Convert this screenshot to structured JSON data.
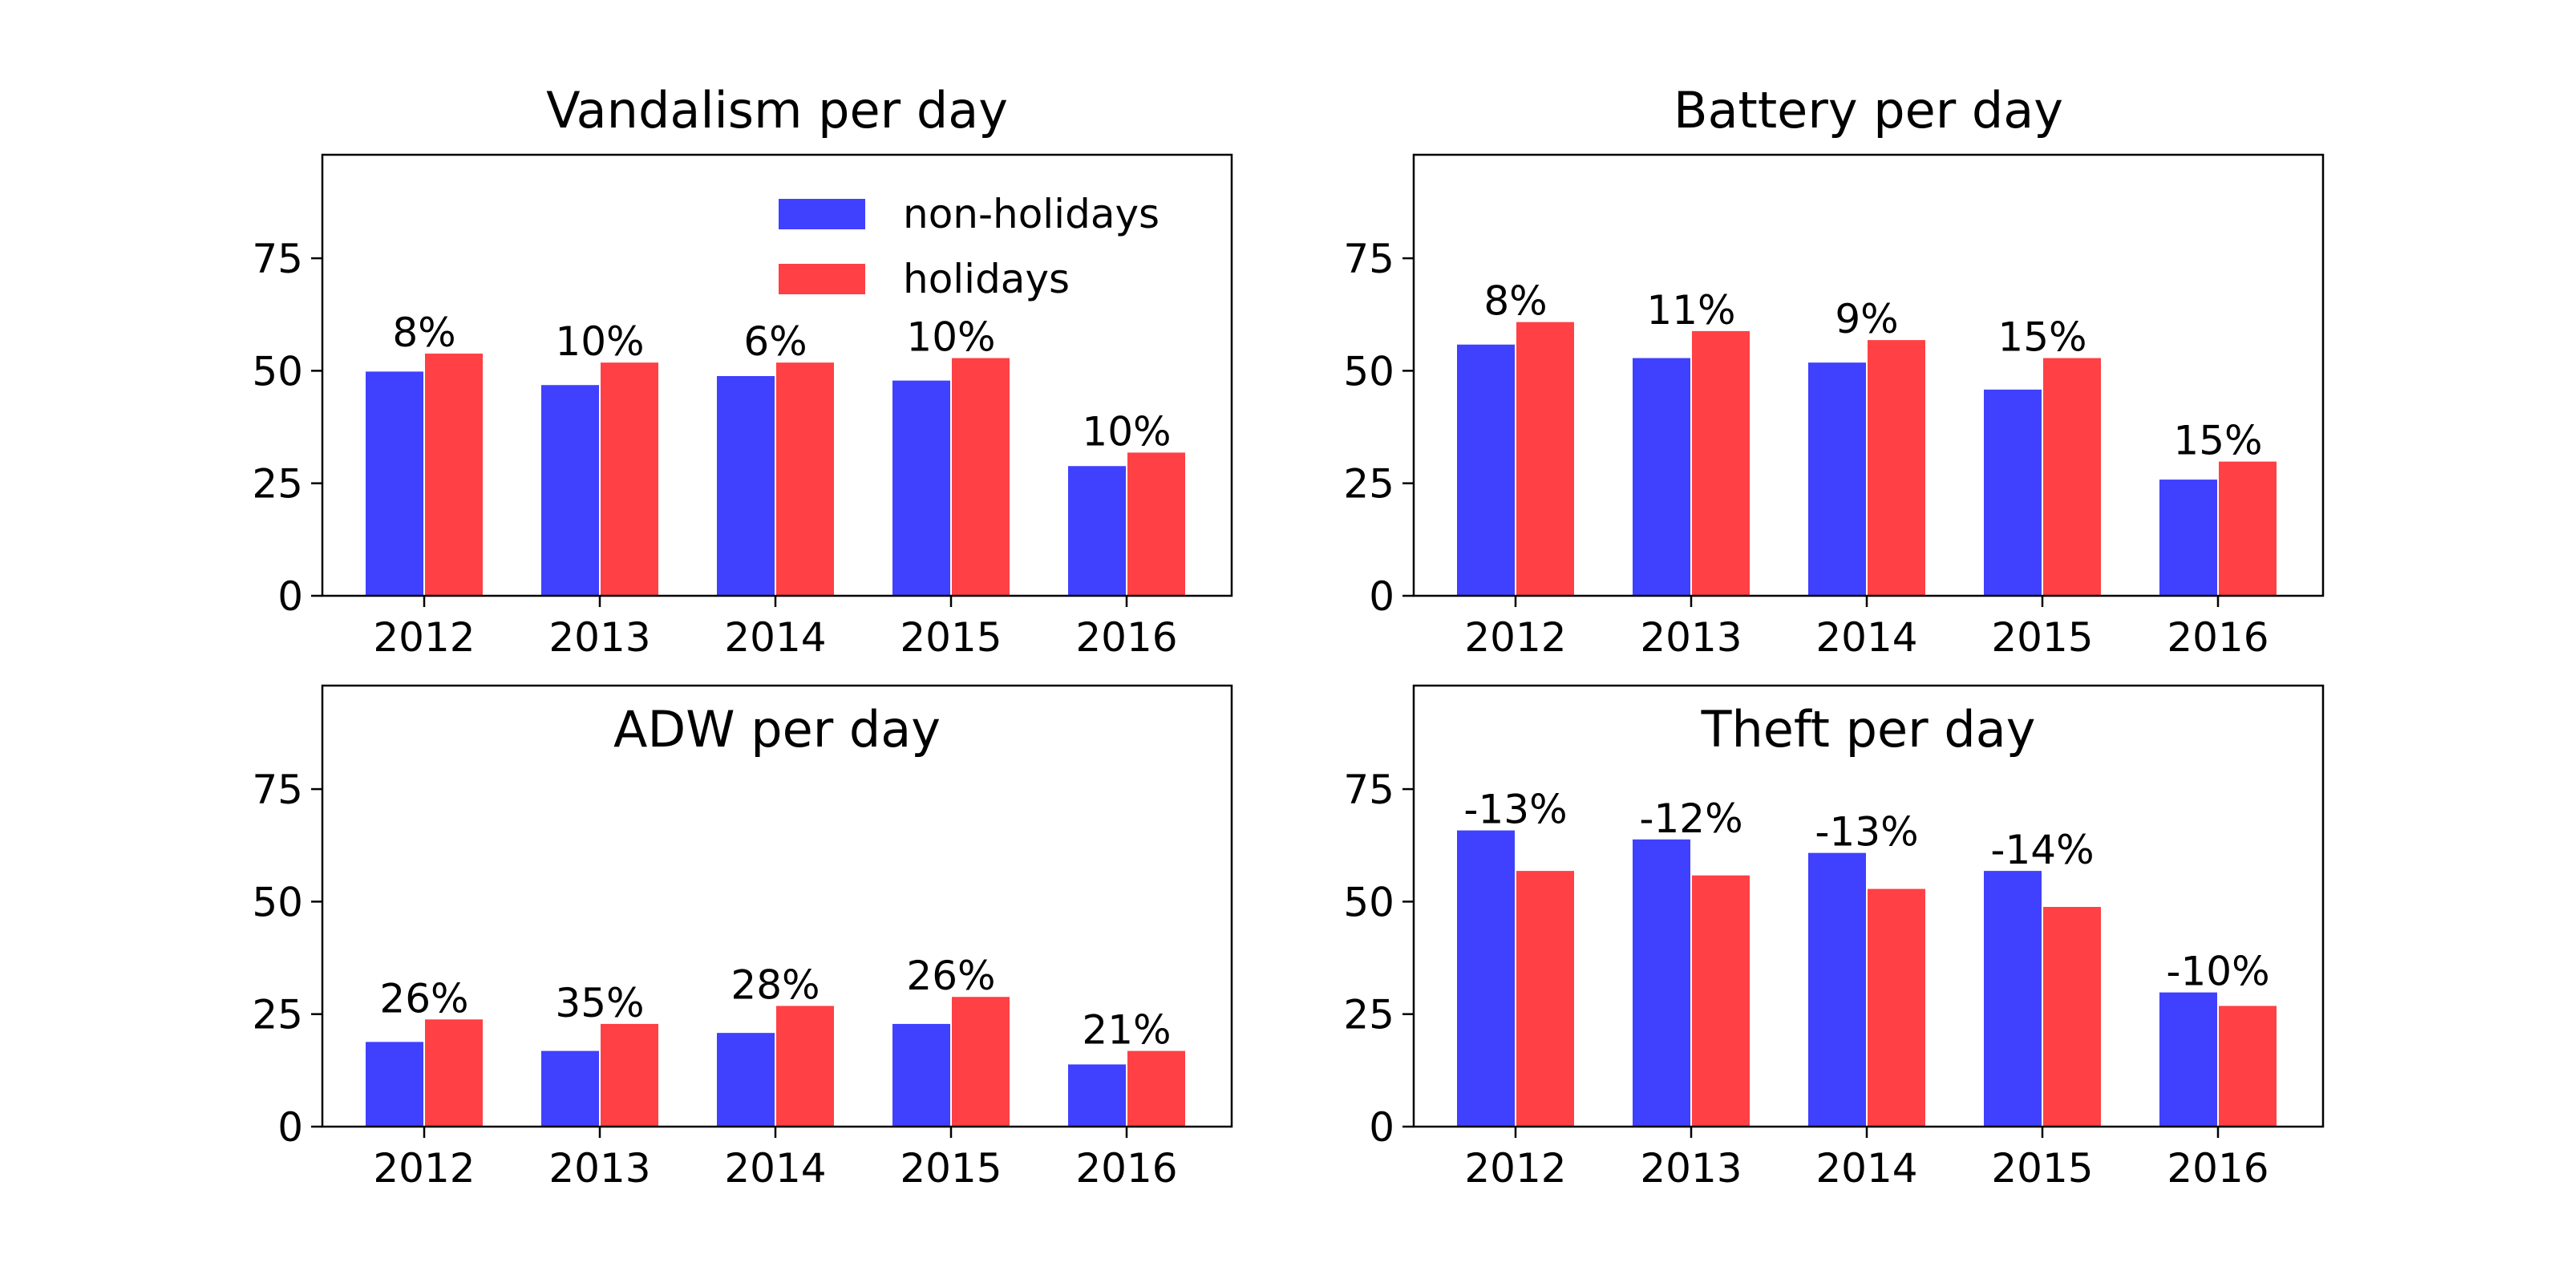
{
  "legend": {
    "items": [
      {
        "label": "non-holidays",
        "color": "#4040ff"
      },
      {
        "label": "holidays",
        "color": "#ff4044"
      }
    ]
  },
  "colors": {
    "non_holidays": "#4040ff",
    "holidays": "#ff4044"
  },
  "chart_data": [
    {
      "type": "bar",
      "title": "Vandalism per day",
      "categories": [
        "2012",
        "2013",
        "2014",
        "2015",
        "2016"
      ],
      "series": [
        {
          "name": "non-holidays",
          "values": [
            50,
            47,
            49,
            48,
            29
          ]
        },
        {
          "name": "holidays",
          "values": [
            54,
            52,
            52,
            53,
            32
          ]
        }
      ],
      "bar_labels": [
        "8%",
        "10%",
        "6%",
        "10%",
        "10%"
      ],
      "ylim": [
        0,
        98
      ],
      "yticks": [
        0,
        25,
        50,
        75
      ],
      "legend": "upper right",
      "grid": false
    },
    {
      "type": "bar",
      "title": "Battery per day",
      "categories": [
        "2012",
        "2013",
        "2014",
        "2015",
        "2016"
      ],
      "series": [
        {
          "name": "non-holidays",
          "values": [
            56,
            53,
            52,
            46,
            26
          ]
        },
        {
          "name": "holidays",
          "values": [
            61,
            59,
            57,
            53,
            30
          ]
        }
      ],
      "bar_labels": [
        "8%",
        "11%",
        "9%",
        "15%",
        "15%"
      ],
      "ylim": [
        0,
        98
      ],
      "yticks": [
        0,
        25,
        50,
        75
      ],
      "grid": false
    },
    {
      "type": "bar",
      "title": "ADW per day",
      "categories": [
        "2012",
        "2013",
        "2014",
        "2015",
        "2016"
      ],
      "series": [
        {
          "name": "non-holidays",
          "values": [
            19,
            17,
            21,
            23,
            14
          ]
        },
        {
          "name": "holidays",
          "values": [
            24,
            23,
            27,
            29,
            17
          ]
        }
      ],
      "bar_labels": [
        "26%",
        "35%",
        "28%",
        "26%",
        "21%"
      ],
      "ylim": [
        0,
        98
      ],
      "yticks": [
        0,
        25,
        50,
        75
      ],
      "grid": false
    },
    {
      "type": "bar",
      "title": "Theft per day",
      "categories": [
        "2012",
        "2013",
        "2014",
        "2015",
        "2016"
      ],
      "series": [
        {
          "name": "non-holidays",
          "values": [
            66,
            64,
            61,
            57,
            30
          ]
        },
        {
          "name": "holidays",
          "values": [
            57,
            56,
            53,
            49,
            27
          ]
        }
      ],
      "bar_labels": [
        "-13%",
        "-12%",
        "-13%",
        "-14%",
        "-10%"
      ],
      "ylim": [
        0,
        98
      ],
      "yticks": [
        0,
        25,
        50,
        75
      ],
      "grid": false
    }
  ]
}
